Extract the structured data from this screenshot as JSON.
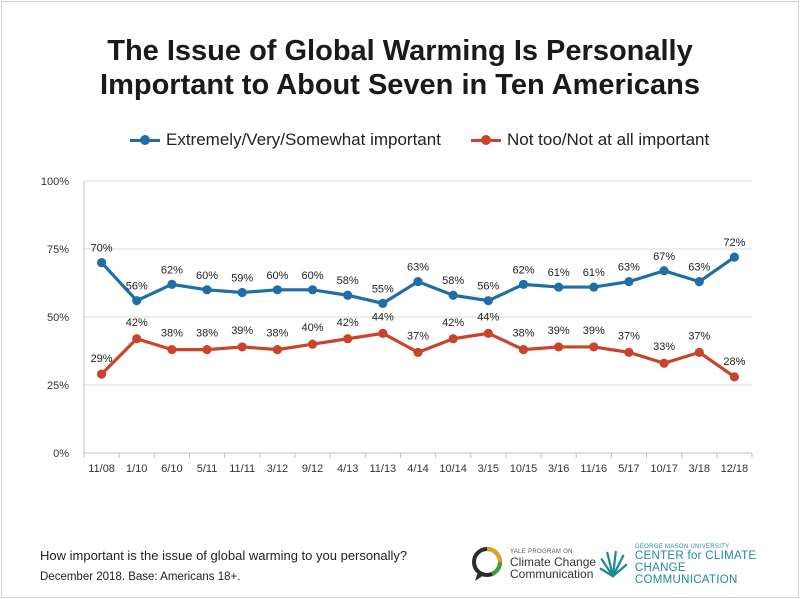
{
  "title_line1": "The Issue of Global Warming Is Personally",
  "title_line2": "Important to About Seven in Ten Americans",
  "footer_question": "How important is the issue of global warming to you personally?",
  "footer_base": "December 2018. Base: Americans 18+.",
  "logos": {
    "yale_small": "YALE PROGRAM ON",
    "yale_line1": "Climate Change",
    "yale_line2": "Communication",
    "gmu_small": "GEORGE MASON UNIVERSITY",
    "gmu_line1": "CENTER for CLIMATE CHANGE",
    "gmu_line2": "COMMUNICATION"
  },
  "colors": {
    "blue": "#1f6fa6",
    "red": "#c8442a",
    "grid": "#d9d9d9",
    "axis": "#bfbfbf"
  },
  "chart_data": {
    "type": "line",
    "title": "The Issue of Global Warming Is Personally Important to About Seven in Ten Americans",
    "categories": [
      "11/08",
      "1/10",
      "6/10",
      "5/11",
      "11/11",
      "3/12",
      "9/12",
      "4/13",
      "11/13",
      "4/14",
      "10/14",
      "3/15",
      "10/15",
      "3/16",
      "11/16",
      "5/17",
      "10/17",
      "3/18",
      "12/18"
    ],
    "series": [
      {
        "name": "Extremely/Very/Somewhat important",
        "color": "#1f6fa6",
        "values": [
          70,
          56,
          62,
          60,
          59,
          60,
          60,
          58,
          55,
          63,
          58,
          56,
          62,
          61,
          61,
          63,
          67,
          63,
          72
        ]
      },
      {
        "name": "Not too/Not at all important",
        "color": "#c8442a",
        "values": [
          29,
          42,
          38,
          38,
          39,
          38,
          40,
          42,
          44,
          37,
          42,
          44,
          38,
          39,
          39,
          37,
          33,
          37,
          28
        ]
      }
    ],
    "ylim": [
      0,
      100
    ],
    "yticks": [
      0,
      25,
      50,
      75,
      100
    ],
    "ytick_labels": [
      "0%",
      "25%",
      "50%",
      "75%",
      "100%"
    ],
    "value_suffix": "%",
    "legend_position": "top",
    "grid": true,
    "xlabel": "",
    "ylabel": ""
  }
}
